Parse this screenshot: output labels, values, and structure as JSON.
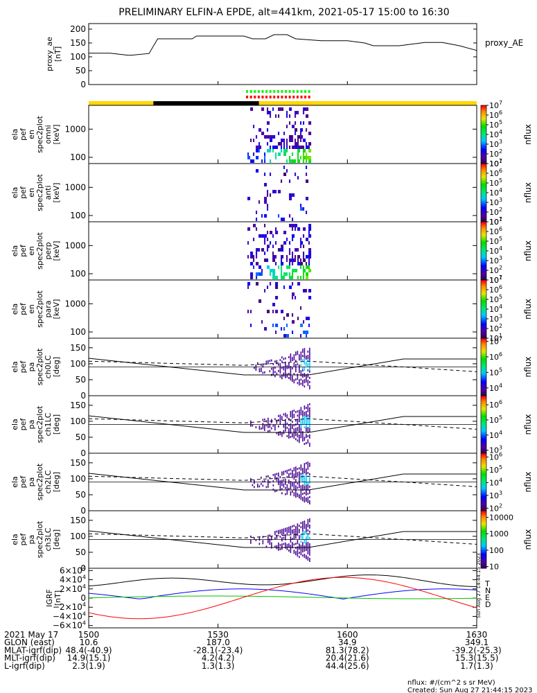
{
  "chart_data": {
    "type": "spectrogram-stack",
    "title": "PRELIMINARY ELFIN-A EPDE, alt=441km, 2021-05-17 15:00 to 16:30",
    "time_axis": {
      "range_minutes": [
        0,
        90
      ],
      "ticks": [
        {
          "m": 0,
          "label": "1500"
        },
        {
          "m": 30,
          "label": "1530"
        },
        {
          "m": 60,
          "label": "1600"
        },
        {
          "m": 90,
          "label": "1630"
        }
      ]
    },
    "ae_panel": {
      "ylabel": "proxy_ae",
      "units": "[nT]",
      "legend": "proxy_AE",
      "ylim": [
        0,
        220
      ],
      "ticks": [
        "200",
        "150",
        "100",
        "50",
        "0"
      ],
      "tick_values": [
        200,
        150,
        100,
        50,
        0
      ],
      "x": [
        0,
        2,
        5,
        9,
        10,
        14,
        16,
        24,
        25,
        36,
        38,
        41,
        43,
        46,
        48,
        54,
        60,
        64,
        66,
        72,
        78,
        82,
        86,
        90
      ],
      "y": [
        113,
        113,
        113,
        106,
        106,
        112,
        165,
        165,
        175,
        175,
        165,
        165,
        180,
        180,
        165,
        158,
        158,
        150,
        140,
        140,
        152,
        152,
        140,
        123
      ]
    },
    "status_bar": {
      "colors": {
        "sun": "#ffd700",
        "shadow": "#000000",
        "science_red": "#ff0000",
        "science_green": "#00ff00"
      },
      "segments": [
        {
          "start": 0,
          "end": 15,
          "state": "sun"
        },
        {
          "start": 15,
          "end": 39.5,
          "state": "shadow"
        },
        {
          "start": 39.5,
          "end": 90,
          "state": "sun"
        }
      ],
      "science_zone": [
        36.5,
        51.5
      ]
    },
    "energy_panels": [
      {
        "id": "omni",
        "label_lines": [
          "ela",
          "pef",
          "en",
          "spec2plot",
          "omni",
          "[keV]"
        ],
        "cbar_ticks": [
          "7",
          "6",
          "5",
          "4",
          "3",
          "2",
          "1"
        ],
        "density": 0.85
      },
      {
        "id": "anti",
        "label_lines": [
          "ela",
          "pef",
          "en",
          "spec2plot",
          "anti",
          "[keV]"
        ],
        "cbar_ticks": [
          "7",
          "6",
          "5",
          "4",
          "3",
          "2",
          "1"
        ],
        "density": 0.25
      },
      {
        "id": "perp",
        "label_lines": [
          "ela",
          "pef",
          "en",
          "spec2plot",
          "perp",
          "[keV]"
        ],
        "cbar_ticks": [
          "7",
          "6",
          "5",
          "4",
          "3",
          "2",
          "1"
        ],
        "density": 0.85
      },
      {
        "id": "para",
        "label_lines": [
          "ela",
          "pef",
          "en",
          "spec2plot",
          "para",
          "[keV]"
        ],
        "cbar_ticks": [
          "7",
          "6",
          "5",
          "4",
          "3",
          "2",
          "1"
        ],
        "density": 0.3
      }
    ],
    "energy_yticks": [
      "1000",
      "100"
    ],
    "energy_ytick_values": [
      1000,
      100
    ],
    "energy_ylim": [
      60,
      7000
    ],
    "pa_panels": [
      {
        "id": "ch0LC",
        "label_lines": [
          "ela",
          "pef",
          "pa",
          "spec2plot",
          "ch0LC",
          "[deg]"
        ],
        "cbar_ticks": [
          "7",
          "6",
          "5",
          "4"
        ],
        "cbar_tick_values": [
          7,
          6,
          5,
          4
        ],
        "cbar_range": [
          3.5,
          7.2
        ]
      },
      {
        "id": "ch1LC",
        "label_lines": [
          "ela",
          "pef",
          "pa",
          "spec2plot",
          "ch1LC",
          "[deg]"
        ],
        "cbar_ticks": [
          "6",
          "5",
          "4",
          "3"
        ],
        "cbar_tick_values": [
          6,
          5,
          4,
          3
        ],
        "cbar_range": [
          2.8,
          6.6
        ]
      },
      {
        "id": "ch2LC",
        "label_lines": [
          "ela",
          "pef",
          "pa",
          "spec2plot",
          "ch2LC",
          "[deg]"
        ],
        "cbar_ticks": [
          "6",
          "5",
          "4",
          "3",
          "2"
        ],
        "cbar_tick_values": [
          6,
          5,
          4,
          3,
          2
        ],
        "cbar_range": [
          1.8,
          6.3
        ]
      },
      {
        "id": "ch3LC",
        "label_lines": [
          "ela",
          "pef",
          "pa",
          "spec2plot",
          "ch3LC",
          "[deg]"
        ],
        "cbar_ticks": [
          "10000",
          "1000",
          "100",
          "10"
        ],
        "cbar_tick_values": [
          4,
          3,
          2,
          1
        ],
        "cbar_range": [
          0.9,
          4.4
        ],
        "linear_labels": true
      }
    ],
    "pa_yticks": [
      "150",
      "100",
      "50",
      "0"
    ],
    "pa_ytick_values": [
      150,
      100,
      50,
      0
    ],
    "pa_ylim": [
      0,
      180
    ],
    "pa_solid": {
      "x": [
        0,
        36,
        51,
        73,
        90
      ],
      "y": [
        117,
        65,
        65,
        115,
        115
      ]
    },
    "pa_dashed": {
      "x": [
        0,
        36,
        51,
        73,
        90
      ],
      "y": [
        108,
        95,
        108,
        90,
        75
      ]
    },
    "colorbar_label": "nflux",
    "igrf_panel": {
      "ylabel": "IGRF",
      "units": "[nT]",
      "ylim": [
        -65000,
        65000
      ],
      "yticks": [
        {
          "v": 60000,
          "mant": "6",
          "sign": ""
        },
        {
          "v": 40000,
          "mant": "4",
          "sign": ""
        },
        {
          "v": 20000,
          "mant": "2",
          "sign": ""
        },
        {
          "v": 0,
          "mant": "0",
          "sign": ""
        },
        {
          "v": -20000,
          "mant": "2",
          "sign": "−"
        },
        {
          "v": -40000,
          "mant": "4",
          "sign": "−"
        },
        {
          "v": -60000,
          "mant": "6",
          "sign": "−"
        }
      ],
      "legend": [
        "T",
        "N",
        "E",
        "D"
      ],
      "colors": {
        "T": "#000000",
        "N": "#0000ff",
        "E": "#00c000",
        "D": "#ff0000"
      }
    },
    "side_stamp": "Sun Aug 27 14:44:15 2023",
    "orbit_table": {
      "rows": [
        {
          "label": "2021 May 17",
          "values": [
            "1500",
            "1530",
            "1600",
            "1630"
          ]
        },
        {
          "label": "GLON (east)",
          "values": [
            "10.6",
            "187.0",
            "34.9",
            "349.1"
          ]
        },
        {
          "label": "MLAT-igrf(dip)",
          "values": [
            "48.4(-40.9)",
            "-28.1(-23.4)",
            "81.3(78.2)",
            "-39.2(-25.3)"
          ]
        },
        {
          "label": "MLT-igrf(dip)",
          "values": [
            "14.9(15.1)",
            "4.2(4.2)",
            "20.4(21.6)",
            "15.3(15.5)"
          ]
        },
        {
          "label": "L-igrf(dip)",
          "values": [
            "2.3(1.9)",
            "1.3(1.3)",
            "44.4(25.6)",
            "1.7(1.3)"
          ]
        }
      ]
    },
    "footer": {
      "units_note": "nflux: #/(cm^2 s sr MeV)",
      "created": "Created: Sun Aug 27 21:44:15 2023"
    }
  }
}
